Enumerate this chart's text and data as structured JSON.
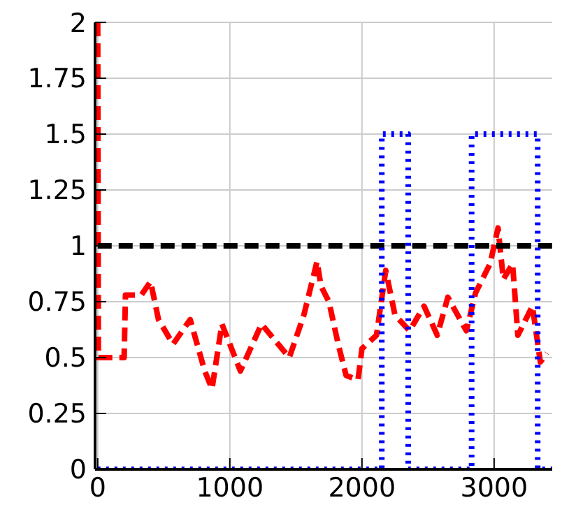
{
  "chart_data": {
    "type": "line",
    "xlim": [
      -20,
      3440
    ],
    "xticks": [
      0,
      1000,
      2000,
      3000
    ],
    "ylim": [
      0,
      2
    ],
    "yticks": [
      0,
      0.25,
      0.5,
      0.75,
      1,
      1.25,
      1.5,
      1.75,
      2
    ],
    "grid": true,
    "legend": false,
    "marker": "none",
    "series": [
      {
        "color": "#ff0000",
        "line_style": "dashed",
        "x": [
          0,
          5,
          30,
          200,
          210,
          330,
          400,
          460,
          570,
          700,
          810,
          865,
          940,
          1080,
          1240,
          1450,
          1560,
          1660,
          1690,
          1750,
          1820,
          1880,
          1970,
          2000,
          2110,
          2180,
          2250,
          2360,
          2470,
          2570,
          2650,
          2790,
          2860,
          2970,
          3030,
          3070,
          3140,
          3180,
          3290,
          3350,
          3400
        ],
        "values": [
          2,
          0.5,
          0.5,
          0.5,
          0.78,
          0.78,
          0.84,
          0.67,
          0.56,
          0.67,
          0.44,
          0.36,
          0.65,
          0.44,
          0.65,
          0.5,
          0.69,
          0.93,
          0.82,
          0.75,
          0.56,
          0.42,
          0.4,
          0.54,
          0.6,
          0.89,
          0.69,
          0.62,
          0.73,
          0.6,
          0.77,
          0.62,
          0.79,
          0.92,
          1.08,
          0.85,
          0.92,
          0.6,
          0.73,
          0.48,
          0.52
        ]
      },
      {
        "color": "#000000",
        "line_style": "dashed",
        "x": [
          0,
          3440
        ],
        "values": [
          1,
          1
        ]
      },
      {
        "color": "#0000ff",
        "line_style": "dotted",
        "x": [
          0,
          2150,
          2150,
          2350,
          2350,
          2830,
          2830,
          3330,
          3330,
          3440
        ],
        "values": [
          0,
          0,
          1.5,
          1.5,
          0,
          0,
          1.5,
          1.5,
          0,
          0
        ]
      }
    ]
  }
}
